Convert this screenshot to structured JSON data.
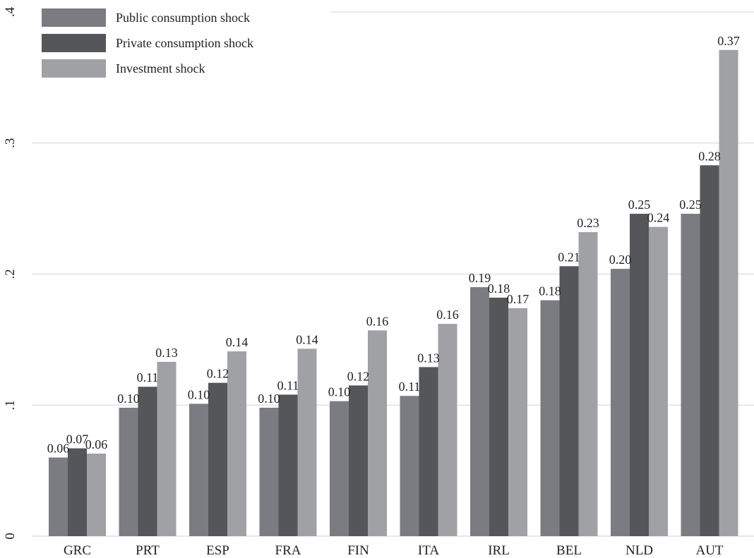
{
  "chart_data": {
    "type": "bar",
    "title": "",
    "xlabel": "",
    "ylabel": "",
    "ylim": [
      0,
      0.4
    ],
    "yticks": [
      0,
      0.1,
      0.2,
      0.3,
      0.4
    ],
    "ytick_labels": [
      "0",
      ".1",
      ".2",
      ".3",
      ".4"
    ],
    "grid": true,
    "legend_position": "top-left",
    "categories": [
      "GRC",
      "PRT",
      "ESP",
      "FRA",
      "FIN",
      "ITA",
      "IRL",
      "BEL",
      "NLD",
      "AUT"
    ],
    "series": [
      {
        "name": "Public consumption shock",
        "color": "#7b7c81",
        "values": [
          0.06,
          0.098,
          0.101,
          0.098,
          0.103,
          0.107,
          0.19,
          0.18,
          0.204,
          0.246
        ],
        "labels": [
          "0.06",
          "0.10",
          "0.10",
          "0.10",
          "0.10",
          "0.11",
          "0.19",
          "0.18",
          "0.20",
          "0.25"
        ]
      },
      {
        "name": "Private consumption shock",
        "color": "#55565a",
        "values": [
          0.067,
          0.114,
          0.117,
          0.108,
          0.115,
          0.129,
          0.182,
          0.206,
          0.246,
          0.283
        ],
        "labels": [
          "0.07",
          "0.11",
          "0.12",
          "0.11",
          "0.12",
          "0.13",
          "0.18",
          "0.21",
          "0.25",
          "0.28"
        ]
      },
      {
        "name": "Investment shock",
        "color": "#a0a1a5",
        "values": [
          0.063,
          0.133,
          0.141,
          0.143,
          0.157,
          0.162,
          0.174,
          0.232,
          0.236,
          0.371
        ],
        "labels": [
          "0.06",
          "0.13",
          "0.14",
          "0.14",
          "0.16",
          "0.16",
          "0.17",
          "0.23",
          "0.24",
          "0.37"
        ]
      }
    ]
  }
}
